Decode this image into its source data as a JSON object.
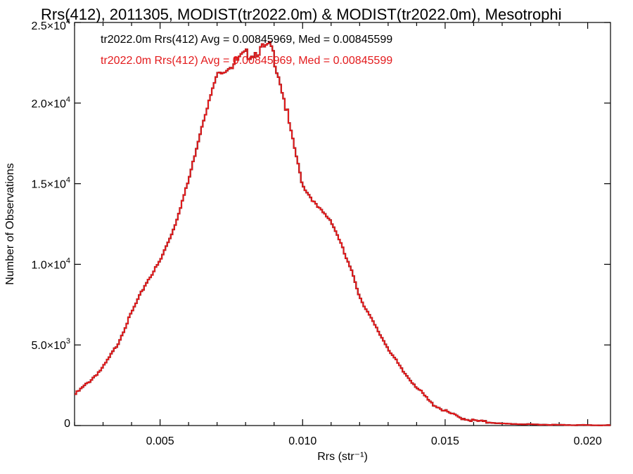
{
  "chart_data": {
    "type": "histogram-step",
    "title": "Rrs(412), 2011305, MODIST(tr2022.0m) & MODIST(tr2022.0m), Mesotrophi",
    "xlabel": "Rrs (str⁻¹)",
    "ylabel": "Number of Observations",
    "xlim": [
      0.002,
      0.0208
    ],
    "ylim": [
      0,
      25000
    ],
    "x_ticks": [
      {
        "value": 0.005,
        "label": "0.005"
      },
      {
        "value": 0.01,
        "label": "0.010"
      },
      {
        "value": 0.015,
        "label": "0.015"
      },
      {
        "value": 0.02,
        "label": "0.020"
      }
    ],
    "y_ticks": [
      {
        "value": 0,
        "label": "0"
      },
      {
        "value": 5000,
        "label": "5.0×10",
        "exp": "3"
      },
      {
        "value": 10000,
        "label": "1.0×10",
        "exp": "4"
      },
      {
        "value": 15000,
        "label": "1.5×10",
        "exp": "4"
      },
      {
        "value": 20000,
        "label": "2.0×10",
        "exp": "4"
      },
      {
        "value": 25000,
        "label": "2.5×10",
        "exp": "4"
      }
    ],
    "annotations": [
      {
        "text": "tr2022.0m Rrs(412) Avg = 0.00845969, Med = 0.00845599",
        "color": "#000000"
      },
      {
        "text": "tr2022.0m Rrs(412) Avg = 0.00845969, Med = 0.00845599",
        "color": "#e31a1c"
      }
    ],
    "series": [
      {
        "color_overlay": "#e31a1c",
        "color_under": "#000000",
        "x": [
          0.002,
          0.0025,
          0.003,
          0.0035,
          0.004,
          0.0045,
          0.005,
          0.0055,
          0.006,
          0.0065,
          0.007,
          0.0073,
          0.0075,
          0.0077,
          0.008,
          0.0083,
          0.0085,
          0.0087,
          0.0089,
          0.009,
          0.0092,
          0.0095,
          0.01,
          0.0105,
          0.011,
          0.0113,
          0.0115,
          0.0118,
          0.012,
          0.0125,
          0.013,
          0.0135,
          0.014,
          0.0145,
          0.015,
          0.0155,
          0.016,
          0.0165,
          0.017,
          0.018,
          0.019,
          0.02,
          0.0208
        ],
        "values": [
          1900,
          2700,
          3600,
          5000,
          7000,
          8800,
          10200,
          12300,
          15200,
          18800,
          21800,
          22000,
          22300,
          22600,
          23000,
          23100,
          23300,
          23400,
          23500,
          22800,
          21500,
          19000,
          14900,
          13600,
          12700,
          11500,
          10500,
          9200,
          8000,
          6300,
          4800,
          3400,
          2400,
          1400,
          900,
          500,
          300,
          200,
          120,
          70,
          40,
          25,
          15
        ]
      }
    ]
  }
}
